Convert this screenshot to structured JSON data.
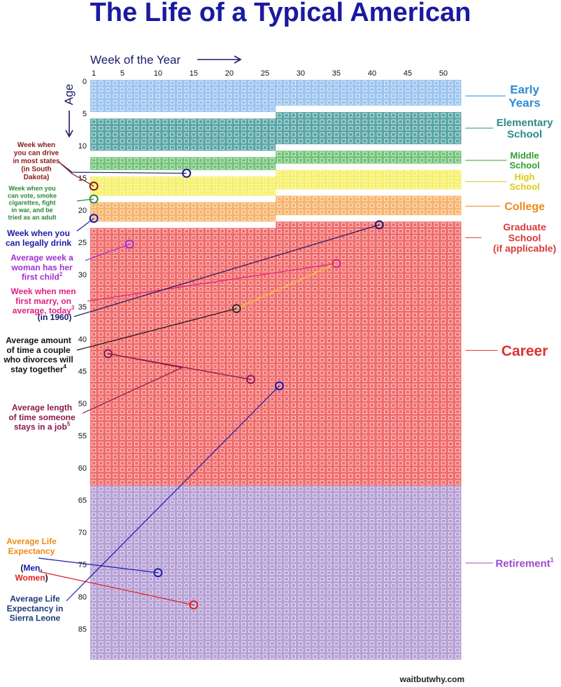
{
  "title": "The Life of a Typical American",
  "credit": "waitbutwhy.com",
  "chart_data": {
    "type": "heatmap",
    "x_axis": {
      "label": "Week of the Year",
      "ticks": [
        1,
        5,
        10,
        15,
        20,
        25,
        30,
        35,
        40,
        45,
        50
      ],
      "range": [
        1,
        52
      ]
    },
    "y_axis": {
      "label": "Age",
      "ticks": [
        0,
        5,
        10,
        15,
        20,
        25,
        30,
        35,
        40,
        45,
        50,
        55,
        60,
        65,
        70,
        75,
        80,
        85
      ],
      "range": [
        0,
        90
      ]
    },
    "stages": [
      {
        "name": "Early\nYears",
        "start": [
          0,
          1
        ],
        "end": [
          5,
          26
        ],
        "color": "#9cc4ef",
        "label_color": "#2a8ad8",
        "label_size": 17,
        "label_age": 2.5
      },
      {
        "name": "Elementary\nSchool",
        "start": [
          5,
          27
        ],
        "end": [
          11,
          26
        ],
        "color": "#5aa6a6",
        "label_color": "#2a8a8a",
        "label_size": 15,
        "label_age": 7.5
      },
      {
        "name": "Middle\nSchool",
        "start": [
          11,
          27
        ],
        "end": [
          14,
          26
        ],
        "color": "#74c47a",
        "label_color": "#2fa02f",
        "label_size": 13,
        "label_age": 12.5
      },
      {
        "name": "High\nSchool",
        "start": [
          14,
          27
        ],
        "end": [
          18,
          26
        ],
        "color": "#f5f06a",
        "label_color": "#d8cc10",
        "label_size": 13,
        "label_age": 15.8
      },
      {
        "name": "College",
        "start": [
          18,
          27
        ],
        "end": [
          22,
          26
        ],
        "color": "#f7b46e",
        "label_color": "#ee8a1a",
        "label_size": 16,
        "label_age": 19.6
      },
      {
        "name": "Graduate\nSchool\n(if applicable)",
        "start": [
          22,
          27
        ],
        "end": [
          63,
          0
        ],
        "color": "#f06c6c",
        "label_color": "#d83a3a",
        "label_size": 14,
        "label_age": 24.5,
        "no_band": true
      },
      {
        "name": "Career",
        "start": [
          22,
          27
        ],
        "end": [
          63,
          0
        ],
        "color": "#f06c6c",
        "label_color": "#e03030",
        "label_size": 21,
        "label_age": 42
      },
      {
        "name": "Retirement",
        "sup": "1",
        "start": [
          63,
          1
        ],
        "end": [
          90,
          52
        ],
        "color": "#b6a0d6",
        "label_color": "#9a4ad0",
        "label_size": 15,
        "label_age": 75
      }
    ],
    "markers": [
      {
        "label": "Week when\nyou can drive\nin most states\n(in South\nDakota)",
        "week": 14,
        "age": 14,
        "color": "#1a1a7a",
        "text_color": "#8a1a1a",
        "size": 10
      },
      {
        "label": "",
        "week": 1,
        "age": 16,
        "color": "#8a1a1a",
        "text_color": "#8a1a1a",
        "size": 10
      },
      {
        "label": "Week when you\ncan vote, smoke\ncigarettes, fight\nin war, and be\ntried as an adult",
        "week": 1,
        "age": 18,
        "color": "#2a8a3a",
        "text_color": "#2a8a3a",
        "size": 9
      },
      {
        "label": "Week when you\ncan legally drink",
        "week": 1,
        "age": 21,
        "color": "#1a1aaa",
        "text_color": "#1a1aaa",
        "size": 12
      },
      {
        "label": "Average week a\nwoman has her\nfirst child",
        "sup": "2",
        "week": 6,
        "age": 25,
        "color": "#a030d0",
        "text_color": "#a030d0",
        "size": 12
      },
      {
        "label": "Week when men\nfirst marry, on\naverage, today",
        "sup": "3",
        "week": 35,
        "age": 28,
        "color": "#e02080",
        "text_color": "#e02080",
        "size": 12
      },
      {
        "label": "(in 1960)",
        "week": 41,
        "age": 22,
        "color": "#1a1a6a",
        "text_color": "#1a1a6a",
        "size": 12
      },
      {
        "label": "",
        "week": 21,
        "age": 35,
        "color": "#333333",
        "text_color": "#333333",
        "size": 12
      },
      {
        "label": "Average amount\nof time a couple\nwho divorces will\nstay together",
        "sup": "4",
        "week": 21,
        "age": 35,
        "color": "#111111",
        "text_color": "#111111",
        "size": 12
      },
      {
        "label": "Average length\nof time someone\nstays in a job",
        "sup": "5",
        "week": 3,
        "age": 42,
        "color": "#8a1a4a",
        "text_color": "#8a1a4a",
        "size": 12
      },
      {
        "label": "",
        "week": 23,
        "age": 46,
        "color": "#8a1a4a",
        "text_color": "#8a1a4a",
        "size": 12
      },
      {
        "label": "Average Life\nExpectancy",
        "week": 10,
        "age": 76,
        "color": "#1a1aaa",
        "text_color": "#ee8a1a",
        "size": 12
      },
      {
        "label": "",
        "week": 15,
        "age": 81,
        "color": "#e02020",
        "text_color": "#e02020",
        "size": 12
      },
      {
        "label": "Average Life\nExpectancy in\nSierra Leone",
        "week": 27,
        "age": 47,
        "color": "#1a1aaa",
        "text_color": "#1a3a7a",
        "size": 12
      }
    ],
    "life_expectancy_legend": {
      "open": "(",
      "men": "Men,",
      "women": "Women",
      "close": ")",
      "men_color": "#1a1aaa",
      "women_color": "#e02020"
    }
  }
}
